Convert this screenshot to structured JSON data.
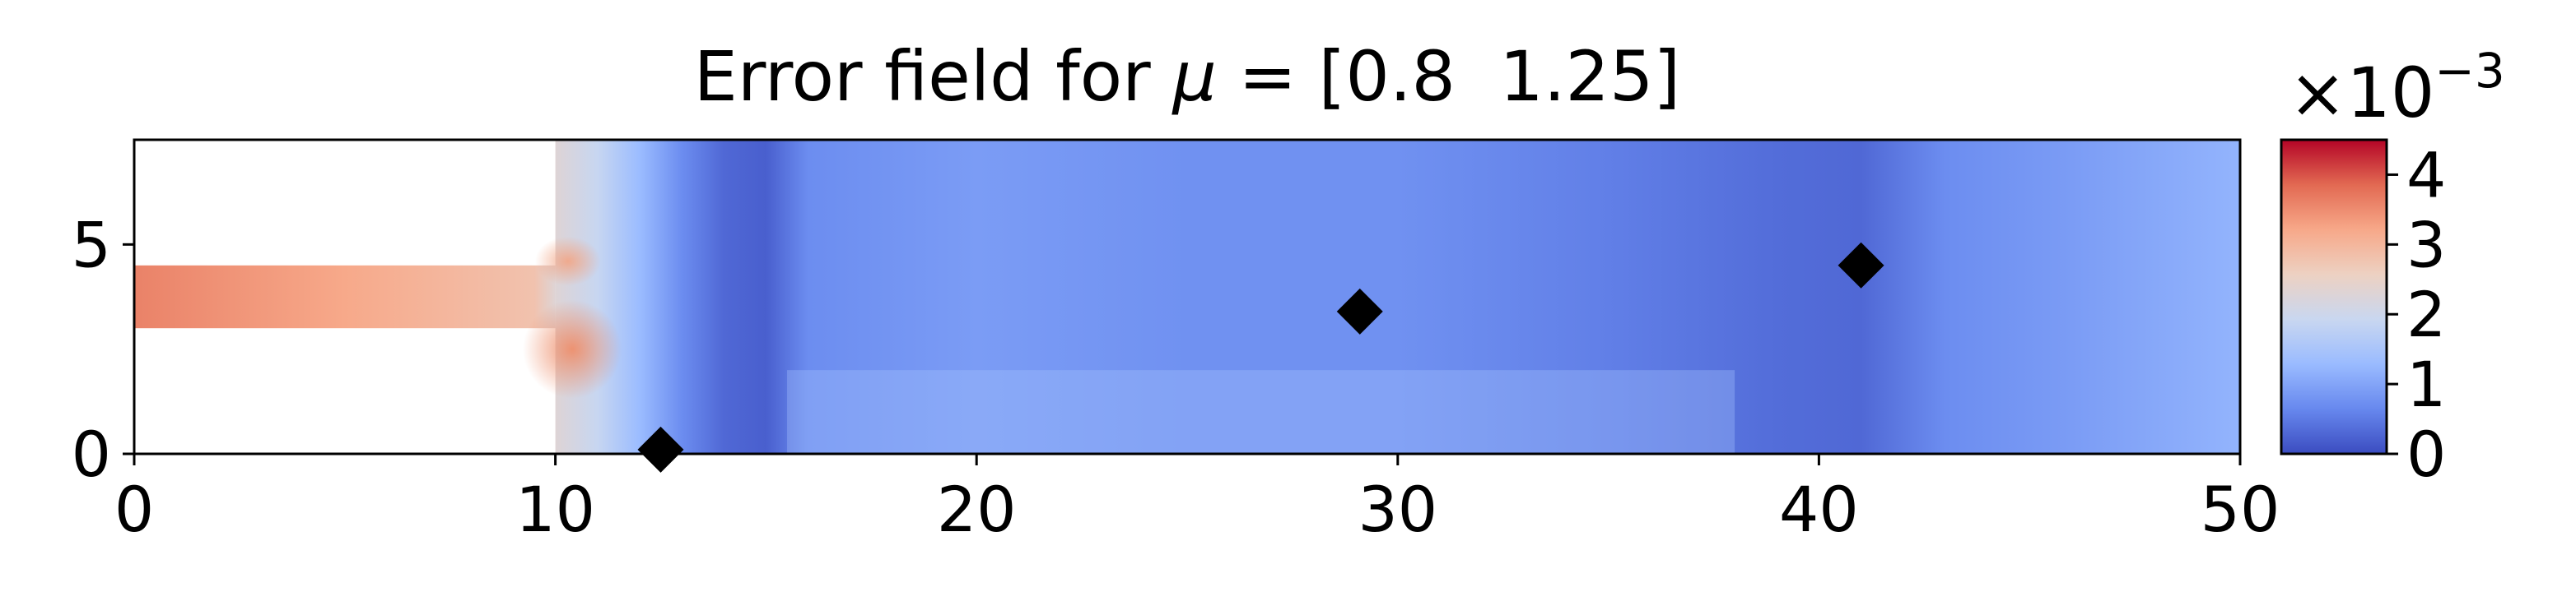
{
  "chart_data": {
    "type": "heatmap",
    "title_prefix": "Error field for ",
    "title_mu": "μ",
    "title_suffix": " = [0.8  1.25]",
    "xlabel": "",
    "ylabel": "",
    "xlim": [
      0,
      50
    ],
    "ylim": [
      0,
      7.5
    ],
    "xticks": [
      0,
      10,
      20,
      30,
      40,
      50
    ],
    "yticks": [
      0,
      5
    ],
    "grid": false,
    "domain": {
      "inlet_channel": {
        "x": [
          0,
          10
        ],
        "y": [
          3,
          4.5
        ]
      },
      "main_chamber": {
        "x": [
          10,
          50
        ],
        "y": [
          0,
          7.5
        ]
      }
    },
    "field_profile": {
      "description_units": "error ×10^-3 along x",
      "x": [
        0,
        5,
        9.5,
        10,
        11,
        12,
        13,
        14,
        15,
        16,
        20,
        25,
        30,
        35,
        39,
        41,
        43,
        46,
        50
      ],
      "values": [
        3.6,
        3.2,
        2.8,
        2.3,
        1.9,
        1.3,
        0.7,
        0.3,
        0.2,
        0.7,
        0.9,
        0.75,
        0.75,
        0.55,
        0.35,
        0.3,
        0.7,
        0.9,
        1.2
      ]
    },
    "markers": {
      "shape": "diamond",
      "color": "#000000",
      "points": [
        {
          "x": 12.5,
          "y": 0.1
        },
        {
          "x": 29.1,
          "y": 3.4
        },
        {
          "x": 41.0,
          "y": 4.5
        }
      ]
    },
    "colorbar": {
      "colormap": "coolwarm",
      "range": [
        0,
        4.5
      ],
      "ticks": [
        0,
        1,
        2,
        3,
        4
      ],
      "multiplier_label": "×10",
      "multiplier_exponent": "−3",
      "stops": [
        "#3b4cc0",
        "#6788ee",
        "#9abbff",
        "#c9d7f0",
        "#edd1c2",
        "#f7a889",
        "#e26952",
        "#b40426"
      ]
    }
  }
}
